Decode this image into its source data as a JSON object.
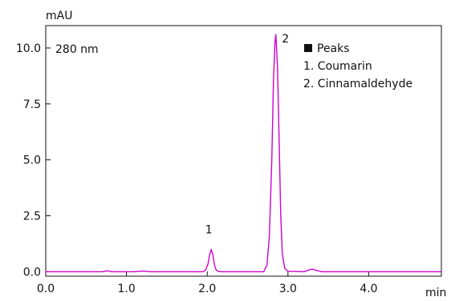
{
  "chart_data": {
    "type": "line",
    "ylabel": "mAU",
    "xlabel": "min",
    "xlim": [
      0.0,
      4.9
    ],
    "ylim": [
      -0.2,
      11.0
    ],
    "x_ticks": [
      "0.0",
      "1.0",
      "2.0",
      "3.0",
      "4.0"
    ],
    "x_tick_values": [
      0.0,
      1.0,
      2.0,
      3.0,
      4.0
    ],
    "y_ticks": [
      "0.0",
      "2.5",
      "5.0",
      "7.5",
      "10.0"
    ],
    "y_tick_values": [
      0.0,
      2.5,
      5.0,
      7.5,
      10.0
    ],
    "annotation_wavelength": "280 nm",
    "legend": {
      "title": "Peaks",
      "entries": [
        "1. Coumarin",
        "2. Cinnamaldehyde"
      ]
    },
    "peak_labels": [
      {
        "label": "1",
        "x": 2.02,
        "y": 1.0
      },
      {
        "label": "2",
        "x": 2.85,
        "y": 10.6
      }
    ],
    "series": [
      {
        "color": "#d100d1",
        "x": [
          0.0,
          0.7,
          0.76,
          0.82,
          1.1,
          1.2,
          1.3,
          1.95,
          1.98,
          2.01,
          2.03,
          2.05,
          2.07,
          2.09,
          2.11,
          2.14,
          2.18,
          2.7,
          2.74,
          2.77,
          2.8,
          2.82,
          2.84,
          2.85,
          2.87,
          2.89,
          2.91,
          2.93,
          2.96,
          3.0,
          3.2,
          3.26,
          3.3,
          3.35,
          3.42,
          4.9
        ],
        "y": [
          0.0,
          0.0,
          0.04,
          0.0,
          0.0,
          0.03,
          0.0,
          0.0,
          0.08,
          0.35,
          0.75,
          1.0,
          0.75,
          0.3,
          0.08,
          0.01,
          0.0,
          0.0,
          0.3,
          1.6,
          5.0,
          8.5,
          10.3,
          10.6,
          9.2,
          6.0,
          2.6,
          0.8,
          0.15,
          0.02,
          0.0,
          0.08,
          0.12,
          0.06,
          0.0,
          0.0
        ]
      }
    ]
  }
}
